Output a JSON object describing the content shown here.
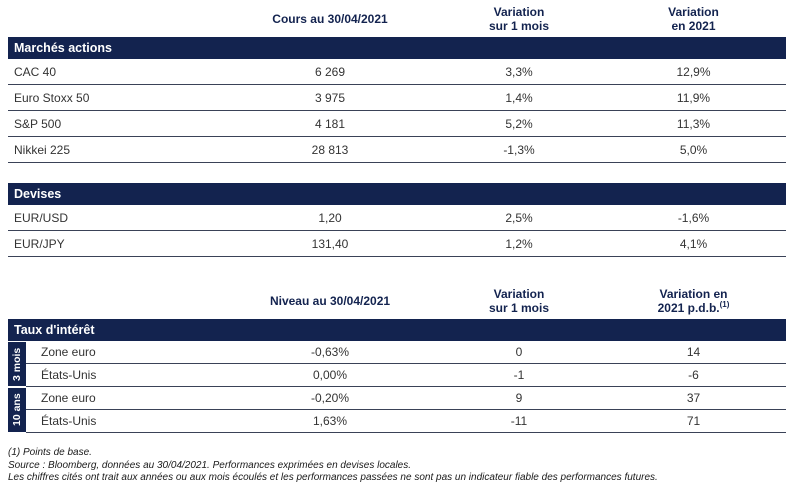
{
  "colors": {
    "navy": "#13234F",
    "line": "#3A4257",
    "text": "#333333"
  },
  "table_markets": {
    "header": {
      "value_col": "Cours au 30/04/2021",
      "var_month_line1": "Variation",
      "var_month_line2": "sur 1 mois",
      "var_year_line1": "Variation",
      "var_year_line2": "en 2021"
    },
    "sections": [
      {
        "title": "Marchés actions",
        "rows": [
          {
            "label": "CAC 40",
            "value": "6 269",
            "var_month": "3,3%",
            "var_year": "12,9%"
          },
          {
            "label": "Euro Stoxx 50",
            "value": "3 975",
            "var_month": "1,4%",
            "var_year": "11,9%"
          },
          {
            "label": "S&P 500",
            "value": "4 181",
            "var_month": "5,2%",
            "var_year": "11,3%"
          },
          {
            "label": "Nikkei 225",
            "value": "28 813",
            "var_month": "-1,3%",
            "var_year": "5,0%"
          }
        ]
      },
      {
        "title": "Devises",
        "rows": [
          {
            "label": "EUR/USD",
            "value": "1,20",
            "var_month": "2,5%",
            "var_year": "-1,6%"
          },
          {
            "label": "EUR/JPY",
            "value": "131,40",
            "var_month": "1,2%",
            "var_year": "4,1%"
          }
        ]
      }
    ]
  },
  "table_rates": {
    "header": {
      "value_col": "Niveau au 30/04/2021",
      "var_month_line1": "Variation",
      "var_month_line2": "sur 1 mois",
      "var_year_line1": "Variation en",
      "var_year_line2": "2021 p.d.b.",
      "var_year_sup": "(1)"
    },
    "title": "Taux d'intérêt",
    "groups": [
      {
        "label": "3 mois",
        "rows": [
          {
            "label": "Zone euro",
            "value": "-0,63%",
            "var_month": "0",
            "var_year": "14"
          },
          {
            "label": "États-Unis",
            "value": "0,00%",
            "var_month": "-1",
            "var_year": "-6"
          }
        ]
      },
      {
        "label": "10 ans",
        "rows": [
          {
            "label": "Zone euro",
            "value": "-0,20%",
            "var_month": "9",
            "var_year": "37"
          },
          {
            "label": "États-Unis",
            "value": "1,63%",
            "var_month": "-11",
            "var_year": "71"
          }
        ]
      }
    ]
  },
  "footnotes": [
    "(1) Points de base.",
    "Source : Bloomberg, données au 30/04/2021. Performances exprimées en devises locales.",
    "Les chiffres cités ont trait aux années ou aux mois écoulés et les performances passées ne sont pas un indicateur fiable des performances futures."
  ]
}
